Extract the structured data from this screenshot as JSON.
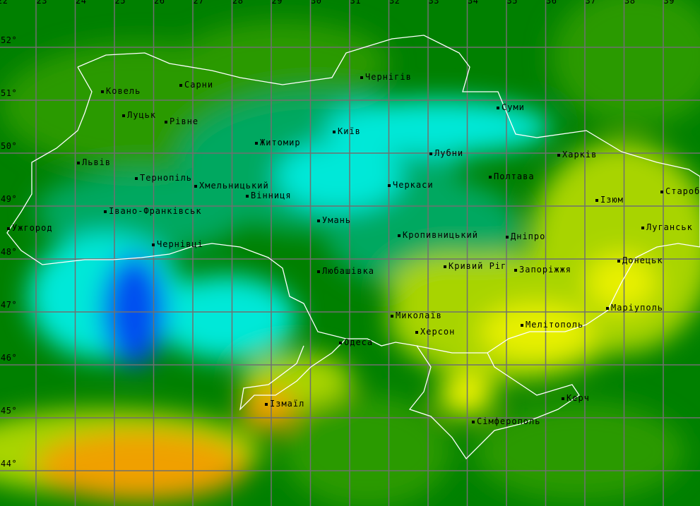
{
  "longitude_labels": [
    "22",
    "23",
    "24",
    "25",
    "26",
    "27",
    "28",
    "29",
    "30",
    "31",
    "32",
    "33",
    "34",
    "35",
    "36",
    "37",
    "38",
    "39"
  ],
  "latitude_labels": [
    "52°",
    "51°",
    "50°",
    "49°",
    "48°",
    "47°",
    "46°",
    "45°",
    "44°"
  ],
  "cities": [
    "Ковель",
    "Сарни",
    "Чернігів",
    "Луцьк",
    "Рівне",
    "Суми",
    "Київ",
    "Житомир",
    "Лубни",
    "Харків",
    "Львів",
    "Тернопіль",
    "Хмельницький",
    "Вінниця",
    "Полтава",
    "Черкаси",
    "Ізюм",
    "Старобільськ",
    "Ужгород",
    "Івано-Франківськ",
    "Умань",
    "Кропивницький",
    "Дніпро",
    "Луганськ",
    "Чернівці",
    "Любашівка",
    "Кривий Ріг",
    "Запоріжжя",
    "Донецьк",
    "Миколаїв",
    "Маріуполь",
    "Херсон",
    "Мелітополь",
    "Одеса",
    "Ізмаїл",
    "Керч",
    "Сімферополь"
  ],
  "colors": {
    "dark_green": "#008000",
    "green": "#2a9a00",
    "teal": "#00a860",
    "cyan": "#00e8d8",
    "blue": "#0050f0",
    "yellow_green": "#a8d400",
    "yellow": "#e8f000",
    "orange": "#f0a000",
    "border": "#ffffff",
    "grid": "#707070"
  }
}
